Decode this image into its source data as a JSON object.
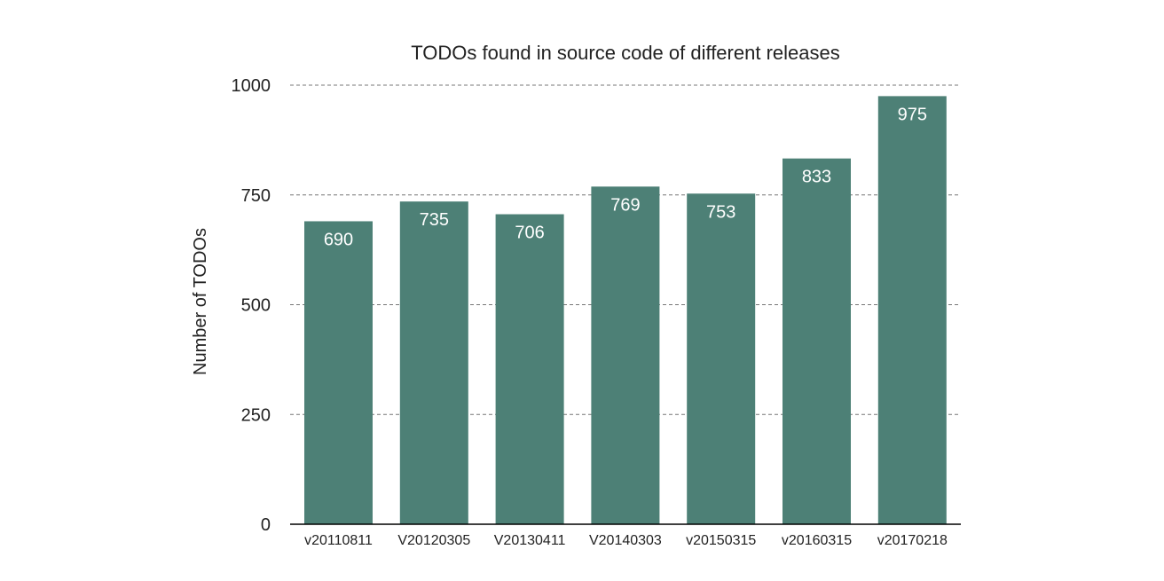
{
  "chart_data": {
    "type": "bar",
    "title": "TODOs found in source code of different releases",
    "xlabel": "",
    "ylabel": "Number of TODOs",
    "categories": [
      "v20110811",
      "V20120305",
      "V20130411",
      "V20140303",
      "v20150315",
      "v20160315",
      "v20170218"
    ],
    "values": [
      690,
      735,
      706,
      769,
      753,
      833,
      975
    ],
    "ylim": [
      0,
      1000
    ],
    "yticks": [
      "0",
      "250",
      "500",
      "750",
      "1000"
    ],
    "grid": true,
    "data_labels": true,
    "bar_color": "#4d8076",
    "data_label_color": "#ffffff"
  }
}
